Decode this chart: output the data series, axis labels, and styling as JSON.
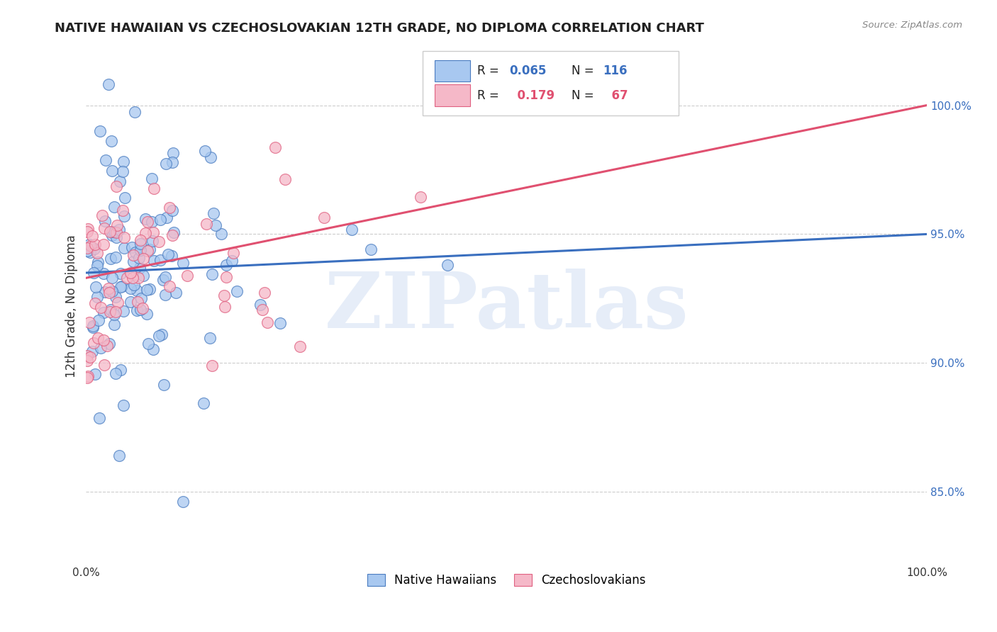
{
  "title": "NATIVE HAWAIIAN VS CZECHOSLOVAKIAN 12TH GRADE, NO DIPLOMA CORRELATION CHART",
  "source": "Source: ZipAtlas.com",
  "ylabel": "12th Grade, No Diploma",
  "xlim": [
    0.0,
    1.0
  ],
  "ylim": [
    0.822,
    1.022
  ],
  "yticks": [
    0.85,
    0.9,
    0.95,
    1.0
  ],
  "ytick_labels": [
    "85.0%",
    "90.0%",
    "95.0%",
    "100.0%"
  ],
  "xtick_labels": [
    "0.0%",
    "",
    "",
    "",
    "",
    "100.0%"
  ],
  "blue_R": 0.065,
  "blue_N": 116,
  "pink_R": 0.179,
  "pink_N": 67,
  "blue_color": "#A8C8F0",
  "pink_color": "#F5B8C8",
  "blue_edge_color": "#4A7CC0",
  "pink_edge_color": "#E06080",
  "blue_line_color": "#3A6FBF",
  "pink_line_color": "#E05070",
  "legend_blue_label": "Native Hawaiians",
  "legend_pink_label": "Czechoslovakians",
  "watermark": "ZIPatlas",
  "watermark_color": "#C8D8F0",
  "blue_line_y0": 0.935,
  "blue_line_y1": 0.95,
  "pink_line_y0": 0.933,
  "pink_line_y1": 1.0
}
